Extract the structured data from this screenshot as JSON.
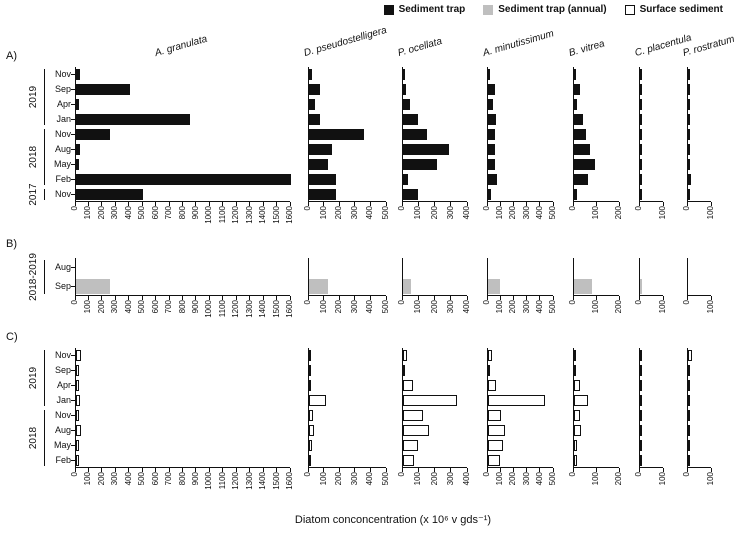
{
  "chart_data": {
    "type": "bar",
    "title": "",
    "xlabel": "Diatom conconcentration (x 10⁶ v gds⁻¹)",
    "ylabel": "",
    "orientation": "horizontal",
    "grid": false,
    "legend_position": "top-right",
    "legend": [
      {
        "label": "Sediment trap",
        "fill": "#111111",
        "border": "#111111"
      },
      {
        "label": "Sediment trap (annual)",
        "fill": "#bfbfbf",
        "border": "#bfbfbf"
      },
      {
        "label": "Surface sediment",
        "fill": "#ffffff",
        "border": "#111111"
      }
    ],
    "bar_styles": {
      "trap": {
        "fill": "#111111",
        "border": "#111111"
      },
      "trap_annual": {
        "fill": "#bfbfbf",
        "border": "#bfbfbf"
      },
      "surface": {
        "fill": "#ffffff",
        "border": "#111111"
      }
    },
    "species": [
      {
        "name": "A. granulata",
        "axis_min": 0,
        "axis_max": 1600,
        "tick_step": 100
      },
      {
        "name": "D. pseudostelligera",
        "axis_min": 0,
        "axis_max": 500,
        "tick_step": 100
      },
      {
        "name": "P. ocellata",
        "axis_min": 0,
        "axis_max": 400,
        "tick_step": 100
      },
      {
        "name": "A. minutissimum",
        "axis_min": 0,
        "axis_max": 500,
        "tick_step": 100
      },
      {
        "name": "B. vitrea",
        "axis_min": 0,
        "axis_max": 200,
        "tick_step": 100
      },
      {
        "name": "C. placentula",
        "axis_min": 0,
        "axis_max": 100,
        "tick_step": 100
      },
      {
        "name": "P. rostratum",
        "axis_min": 0,
        "axis_max": 100,
        "tick_step": 100
      }
    ],
    "panels": [
      {
        "id": "A",
        "label": "A)",
        "bar_style": "trap",
        "months": [
          "Nov",
          "Sep",
          "Apr",
          "Jan",
          "Nov",
          "Aug",
          "May",
          "Feb",
          "Nov"
        ],
        "year_groups": [
          {
            "label": "2019",
            "rows": 4
          },
          {
            "label": "2018",
            "rows": 4
          },
          {
            "label": "2017",
            "rows": 1
          }
        ],
        "series": [
          {
            "species": "A. granulata",
            "values": [
              30,
              400,
              20,
              850,
              250,
              30,
              20,
              1600,
              500
            ]
          },
          {
            "species": "D. pseudostelligera",
            "values": [
              20,
              70,
              40,
              70,
              350,
              150,
              120,
              170,
              170
            ]
          },
          {
            "species": "P. ocellata",
            "values": [
              10,
              20,
              40,
              90,
              150,
              280,
              210,
              30,
              90
            ]
          },
          {
            "species": "A. minutissimum",
            "values": [
              15,
              50,
              40,
              60,
              50,
              50,
              50,
              70,
              20
            ]
          },
          {
            "species": "B. vitrea",
            "values": [
              5,
              25,
              15,
              40,
              50,
              70,
              90,
              60,
              15
            ]
          },
          {
            "species": "C. placentula",
            "values": [
              3,
              5,
              3,
              8,
              5,
              5,
              5,
              5,
              3
            ]
          },
          {
            "species": "P. rostratum",
            "values": [
              3,
              10,
              3,
              3,
              3,
              3,
              3,
              12,
              10
            ]
          }
        ]
      },
      {
        "id": "B",
        "label": "B)",
        "bar_style": "trap_annual",
        "months": [
          "Aug",
          "Sep"
        ],
        "year_groups": [
          {
            "label": "2018-2019",
            "rows": 2
          }
        ],
        "series": [
          {
            "species": "A. granulata",
            "values": [
              0,
              250
            ]
          },
          {
            "species": "D. pseudostelligera",
            "values": [
              0,
              120
            ]
          },
          {
            "species": "P. ocellata",
            "values": [
              0,
              50
            ]
          },
          {
            "species": "A. minutissimum",
            "values": [
              0,
              90
            ]
          },
          {
            "species": "B. vitrea",
            "values": [
              0,
              80
            ]
          },
          {
            "species": "C. placentula",
            "values": [
              0,
              10
            ]
          },
          {
            "species": "P. rostratum",
            "values": [
              0,
              0
            ]
          }
        ]
      },
      {
        "id": "C",
        "label": "C)",
        "bar_style": "surface",
        "months": [
          "Nov",
          "Sep",
          "Apr",
          "Jan",
          "Nov",
          "Aug",
          "May",
          "Feb"
        ],
        "year_groups": [
          {
            "label": "2019",
            "rows": 4
          },
          {
            "label": "2018",
            "rows": 4
          }
        ],
        "series": [
          {
            "species": "A. granulata",
            "values": [
              40,
              20,
              20,
              30,
              20,
              40,
              20,
              20
            ]
          },
          {
            "species": "D. pseudostelligera",
            "values": [
              15,
              10,
              15,
              110,
              25,
              35,
              20,
              15
            ]
          },
          {
            "species": "P. ocellata",
            "values": [
              25,
              10,
              60,
              330,
              120,
              160,
              90,
              70
            ]
          },
          {
            "species": "A. minutissimum",
            "values": [
              30,
              10,
              60,
              430,
              100,
              130,
              110,
              90
            ]
          },
          {
            "species": "B. vitrea",
            "values": [
              10,
              5,
              25,
              60,
              25,
              30,
              15,
              15
            ]
          },
          {
            "species": "C. placentula",
            "values": [
              3,
              3,
              3,
              8,
              3,
              3,
              3,
              3
            ]
          },
          {
            "species": "P. rostratum",
            "values": [
              15,
              3,
              3,
              3,
              3,
              8,
              3,
              3
            ]
          }
        ]
      }
    ]
  }
}
